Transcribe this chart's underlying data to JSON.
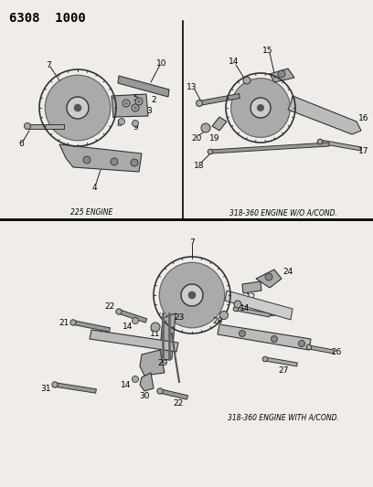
{
  "title": "6308  1000",
  "bg_color": "#f0ede8",
  "fig_width": 4.08,
  "fig_height": 5.33,
  "dpi": 100,
  "caption_top_left": "225 ENGINE",
  "caption_top_right": "318-360 ENGINE W/O A/COND.",
  "caption_bottom": "318-360 ENGINE WITH A/COND.",
  "label_fs": 6.5,
  "caption_fs": 5.5
}
